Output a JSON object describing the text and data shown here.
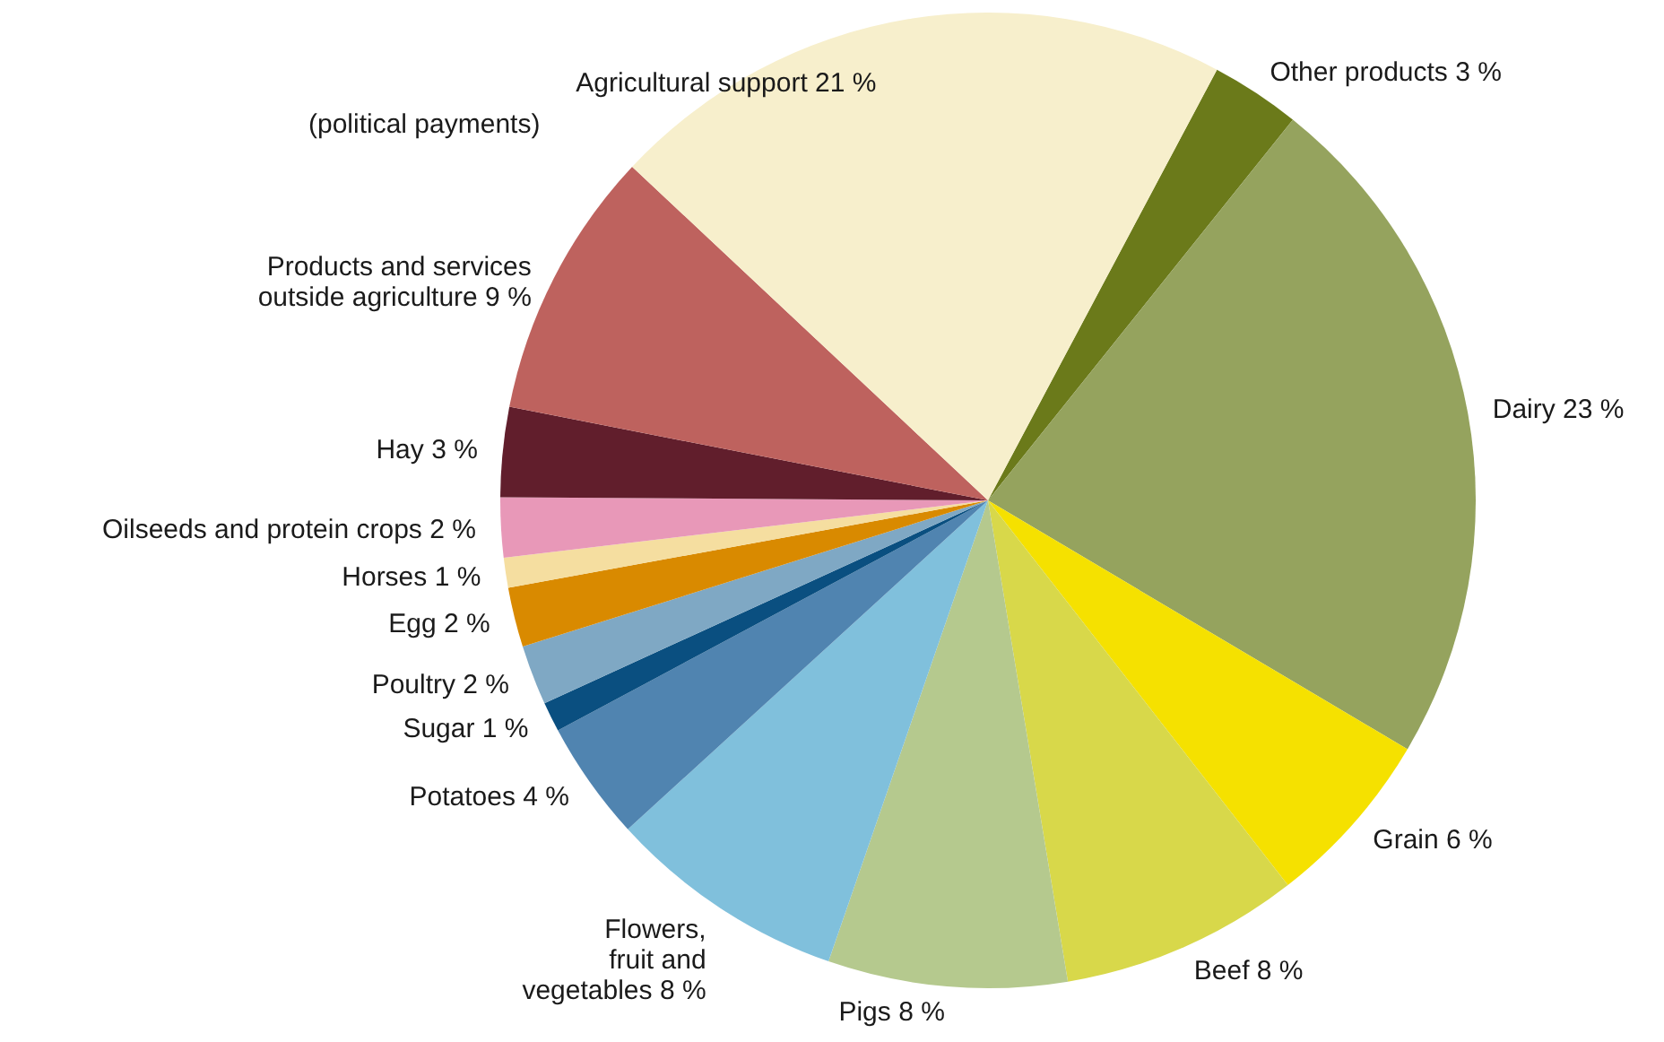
{
  "chart_data": {
    "type": "pie",
    "categories": [
      "Other products",
      "Dairy",
      "Grain",
      "Beef",
      "Pigs",
      "Flowers,\nfruit and\nvegetables",
      "Potatoes",
      "Sugar",
      "Poultry",
      "Egg",
      "Horses",
      "Oilseeds and protein crops",
      "Hay",
      "Products and services\noutside agriculture",
      "Agricultural support"
    ],
    "values": [
      3,
      23,
      6,
      8,
      8,
      8,
      4,
      1,
      2,
      2,
      1,
      2,
      3,
      9,
      21
    ],
    "value_labels": [
      "3 %",
      "23 %",
      "6 %",
      "8 %",
      "8 %",
      "8 %",
      "4 %",
      "1 %",
      "2 %",
      "2 %",
      "1 %",
      "2 %",
      "3 %",
      "9 %",
      "21 %"
    ],
    "colors": [
      "#6b7a1a",
      "#95a35e",
      "#f5e100",
      "#d8d84a",
      "#b5c98e",
      "#80c0dc",
      "#5084b0",
      "#0a4f80",
      "#7fa8c4",
      "#d98a00",
      "#f5dea0",
      "#e898b8",
      "#611e2c",
      "#be625e",
      "#f7efcc"
    ],
    "annotations": [
      "(political payments)"
    ]
  }
}
